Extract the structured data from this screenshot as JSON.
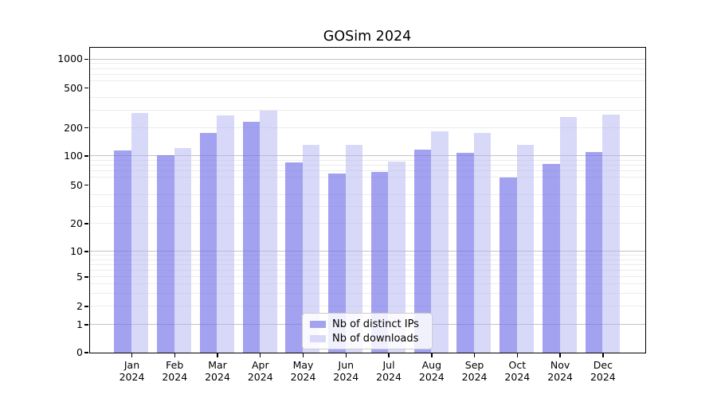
{
  "chart_data": {
    "type": "bar",
    "title": "GOSim 2024",
    "categories": [
      "Jan 2024",
      "Feb 2024",
      "Mar 2024",
      "Apr 2024",
      "May 2024",
      "Jun 2024",
      "Jul 2024",
      "Aug 2024",
      "Sep 2024",
      "Oct 2024",
      "Nov 2024",
      "Dec 2024"
    ],
    "series": [
      {
        "name": "Nb of distinct IPs",
        "values": [
          112,
          99,
          170,
          224,
          83,
          64,
          66,
          114,
          106,
          58,
          81,
          107
        ],
        "color": "#a2a2f0",
        "fill": "rgba(112,112,232,0.65)"
      },
      {
        "name": "Nb of downloads",
        "values": [
          272,
          119,
          259,
          290,
          127,
          128,
          85,
          180,
          170,
          129,
          250,
          264
        ],
        "color": "#d8d8f8",
        "fill": "rgba(177,177,241,0.5)"
      }
    ],
    "yaxis": {
      "scale": "symlog",
      "ticks": [
        0,
        1,
        2,
        5,
        10,
        20,
        50,
        100,
        200,
        500,
        1000
      ],
      "major_ticks": [
        1,
        10,
        100,
        1000
      ],
      "minor_gridlines": [
        2,
        3,
        4,
        5,
        6,
        7,
        8,
        9,
        20,
        30,
        40,
        60,
        70,
        80,
        90,
        200,
        300,
        400,
        600,
        700,
        800,
        900
      ],
      "ylim_top": 1200
    },
    "grid": "both",
    "legend_position": "lower center",
    "axis_color": "#000000",
    "major_grid_color": "#c3c3c3",
    "minor_grid_color": "#ececec"
  }
}
